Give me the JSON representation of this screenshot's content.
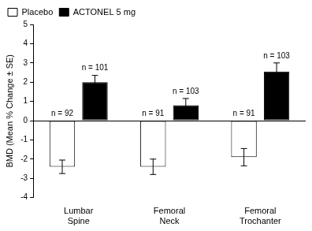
{
  "chart_data": {
    "type": "bar",
    "categories": [
      "Lumbar Spine",
      "Femoral Neck",
      "Femoral Trochanter"
    ],
    "ylabel": "BMD (Mean % Change ± SE)",
    "series": [
      {
        "name": "Placebo",
        "color": "#ffffff",
        "values": [
          -2.4,
          -2.4,
          -1.9
        ],
        "errors": [
          0.35,
          0.4,
          0.45
        ],
        "n_labels": [
          "n = 92",
          "n = 91",
          "n = 91"
        ]
      },
      {
        "name": "ACTONEL 5 mg",
        "color": "#000000",
        "values": [
          2.0,
          0.8,
          2.55
        ],
        "errors": [
          0.35,
          0.35,
          0.45
        ],
        "n_labels": [
          "n = 101",
          "n = 103",
          "n = 103"
        ]
      }
    ],
    "ylim": [
      -4,
      5
    ],
    "yticks": [
      -4,
      -3,
      -2,
      -1,
      0,
      1,
      2,
      3,
      4,
      5
    ],
    "grid": false,
    "legend": "upper left"
  }
}
